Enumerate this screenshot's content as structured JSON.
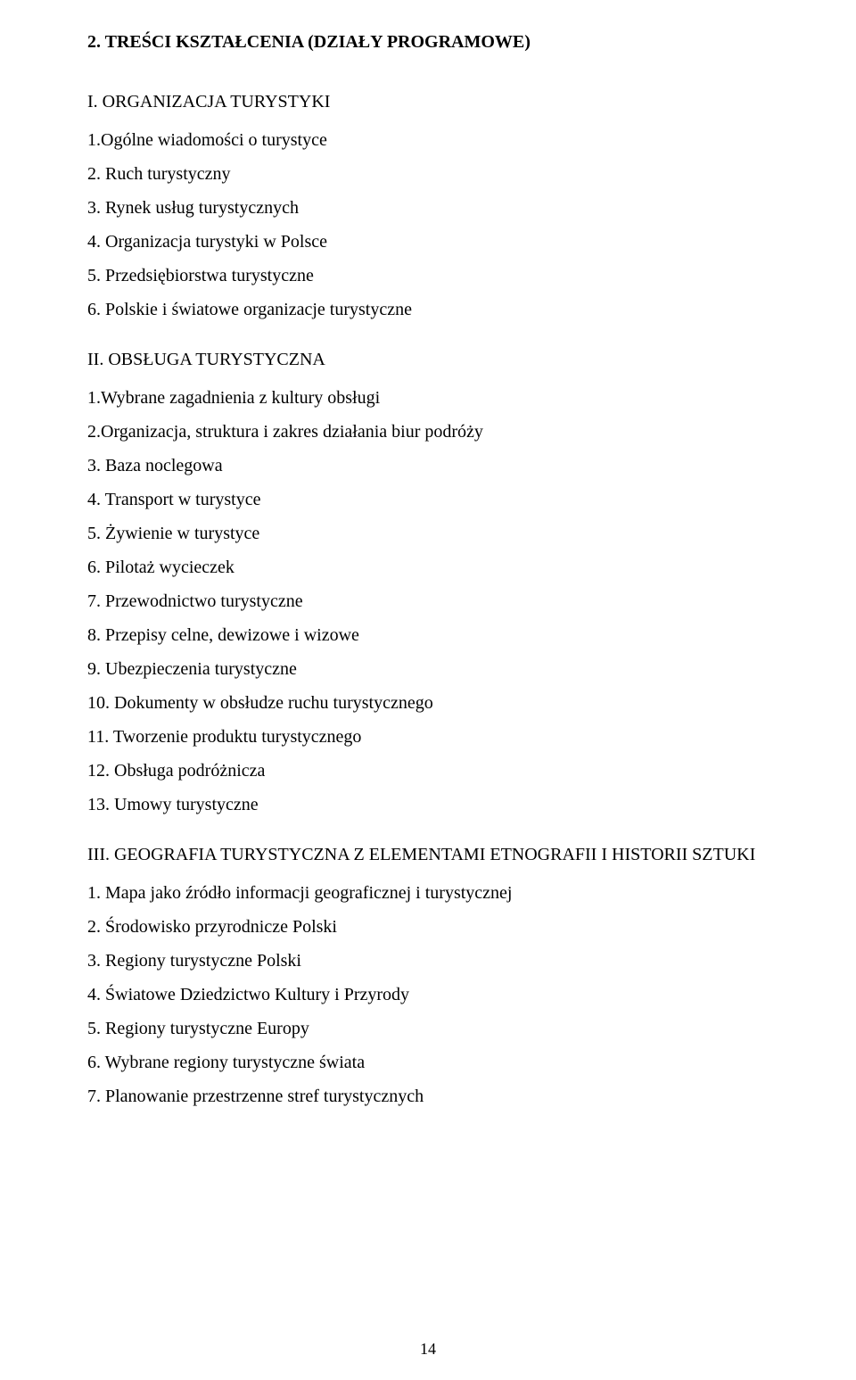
{
  "title": "2. TREŚCI KSZTAŁCENIA (DZIAŁY PROGRAMOWE)",
  "sections": [
    {
      "heading": "I. ORGANIZACJA TURYSTYKI",
      "items": [
        "1.Ogólne wiadomości o turystyce",
        "2. Ruch turystyczny",
        "3. Rynek usług turystycznych",
        "4. Organizacja turystyki w Polsce",
        "5. Przedsiębiorstwa turystyczne",
        "6. Polskie i światowe organizacje turystyczne"
      ]
    },
    {
      "heading": "II. OBSŁUGA TURYSTYCZNA",
      "items": [
        "1.Wybrane zagadnienia z kultury obsługi",
        "2.Organizacja, struktura i zakres działania biur podróży",
        "3. Baza noclegowa",
        "4. Transport w turystyce",
        "5. Żywienie w turystyce",
        "6. Pilotaż wycieczek",
        "7. Przewodnictwo turystyczne",
        "8. Przepisy celne, dewizowe i wizowe",
        "9. Ubezpieczenia turystyczne",
        "10. Dokumenty w obsłudze ruchu turystycznego",
        "11. Tworzenie produktu turystycznego",
        "12. Obsługa podróżnicza",
        "13. Umowy turystyczne"
      ]
    },
    {
      "heading": "III. GEOGRAFIA TURYSTYCZNA Z ELEMENTAMI ETNOGRAFII I HISTORII SZTUKI",
      "items": [
        "1. Mapa jako źródło informacji geograficznej i turystycznej",
        "2. Środowisko przyrodnicze Polski",
        "3. Regiony turystyczne Polski",
        "4. Światowe Dziedzictwo Kultury i Przyrody",
        "5. Regiony turystyczne Europy",
        "6. Wybrane  regiony turystyczne świata",
        "7. Planowanie przestrzenne stref turystycznych"
      ]
    }
  ],
  "pageNumber": "14"
}
